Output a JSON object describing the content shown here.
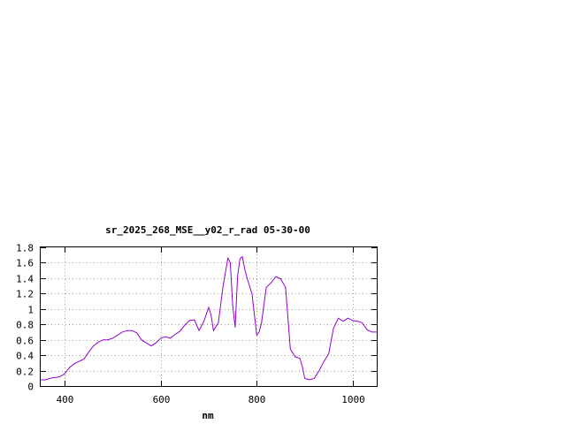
{
  "chart_data": {
    "type": "line",
    "title": "sr_2025_268_MSE__y02_r_rad 05-30-00",
    "xlabel": "nm",
    "ylabel": "",
    "xlim": [
      350,
      1050
    ],
    "ylim": [
      0,
      1.8
    ],
    "x_ticks": [
      400,
      600,
      800,
      1000
    ],
    "x_tick_labels": [
      "400",
      "600",
      "800",
      "1000"
    ],
    "y_ticks": [
      0,
      0.2,
      0.4,
      0.6,
      0.8,
      1.0,
      1.2,
      1.4,
      1.6,
      1.8
    ],
    "y_tick_labels": [
      "0",
      "0.2",
      "0.4",
      "0.6",
      "0.8",
      "1",
      "1.2",
      "1.4",
      "1.6",
      "1.8"
    ],
    "grid": true,
    "line_color": "#9400d3",
    "series": [
      {
        "x": [
          350,
          360,
          370,
          380,
          390,
          400,
          410,
          420,
          430,
          440,
          450,
          460,
          470,
          480,
          490,
          500,
          510,
          520,
          530,
          540,
          550,
          560,
          570,
          580,
          590,
          600,
          610,
          620,
          630,
          640,
          650,
          660,
          670,
          680,
          690,
          700,
          705,
          710,
          720,
          730,
          740,
          745,
          750,
          755,
          760,
          765,
          770,
          775,
          780,
          785,
          790,
          800,
          805,
          810,
          820,
          830,
          840,
          850,
          860,
          870,
          880,
          890,
          895,
          900,
          910,
          920,
          930,
          940,
          950,
          960,
          970,
          980,
          990,
          1000,
          1010,
          1020,
          1030,
          1040,
          1050
        ],
        "y": [
          0.08,
          0.08,
          0.1,
          0.11,
          0.12,
          0.16,
          0.24,
          0.29,
          0.32,
          0.35,
          0.44,
          0.52,
          0.57,
          0.6,
          0.6,
          0.62,
          0.66,
          0.7,
          0.72,
          0.72,
          0.69,
          0.6,
          0.56,
          0.52,
          0.56,
          0.62,
          0.64,
          0.62,
          0.67,
          0.71,
          0.79,
          0.85,
          0.86,
          0.72,
          0.84,
          1.02,
          0.92,
          0.72,
          0.82,
          1.3,
          1.66,
          1.6,
          1.05,
          0.76,
          1.42,
          1.65,
          1.68,
          1.52,
          1.4,
          1.3,
          1.2,
          0.66,
          0.7,
          0.82,
          1.28,
          1.34,
          1.42,
          1.39,
          1.28,
          0.48,
          0.38,
          0.36,
          0.25,
          0.1,
          0.08,
          0.1,
          0.2,
          0.32,
          0.42,
          0.75,
          0.88,
          0.84,
          0.88,
          0.85,
          0.84,
          0.82,
          0.73,
          0.7,
          0.7
        ]
      }
    ]
  }
}
